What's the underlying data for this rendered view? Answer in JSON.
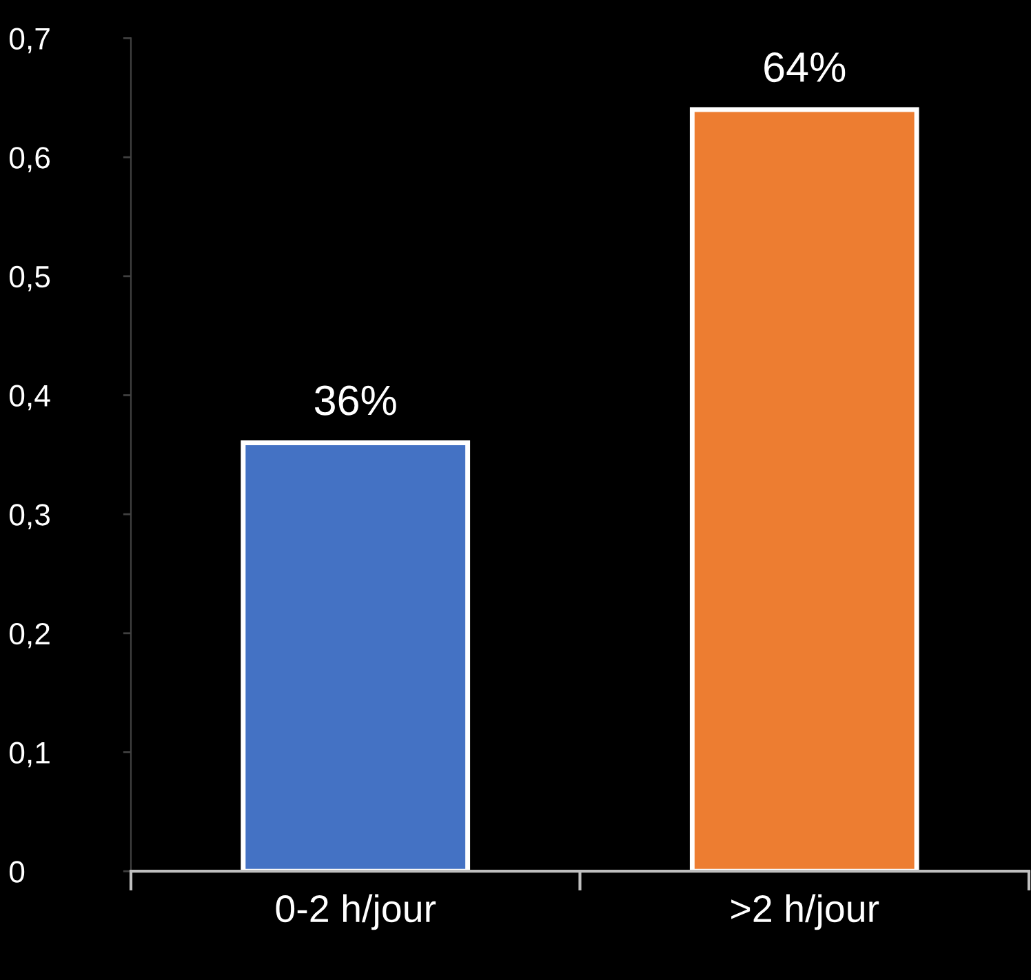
{
  "chart_data": {
    "type": "bar",
    "categories": [
      "0-2 h/jour",
      ">2 h/jour"
    ],
    "values": [
      0.36,
      0.64
    ],
    "colors": [
      "#4472c4",
      "#ed7d31"
    ],
    "value_labels": [
      "36%",
      "64%"
    ],
    "ylim": [
      0,
      0.7
    ],
    "yticks": [
      0,
      {
        "value": 0.1,
        "label": "0,1"
      },
      {
        "value": 0.2,
        "label": "0,2"
      },
      {
        "value": 0.3,
        "label": "0,3"
      },
      {
        "value": 0.4,
        "label": "0,4"
      },
      {
        "value": 0.5,
        "label": "0,5"
      },
      {
        "value": 0.6,
        "label": "0,6"
      },
      {
        "value": 0.7,
        "label": "0,7"
      }
    ],
    "grid": false,
    "legend": false
  }
}
